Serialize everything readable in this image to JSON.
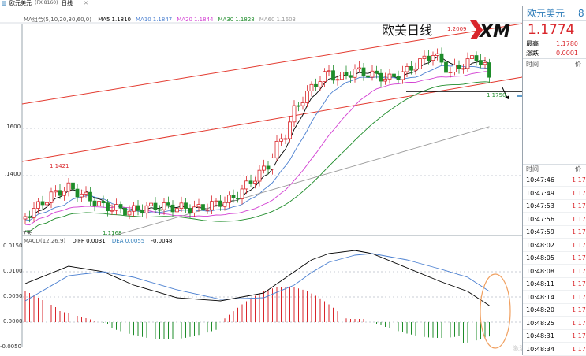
{
  "window": {
    "title_tag": "(FX 8160)",
    "symbol": "欧元美元",
    "period": "日线",
    "close_btn": "✕"
  },
  "ma_indicator": {
    "name": "MA组合(5,10,20,30,60,0)",
    "items": [
      {
        "label": "MA5",
        "value": "1.1810",
        "color": "#000000"
      },
      {
        "label": "MA10",
        "value": "1.1847",
        "color": "#4a7fd0"
      },
      {
        "label": "MA20",
        "value": "1.1844",
        "color": "#d23fd2"
      },
      {
        "label": "MA30",
        "value": "1.1828",
        "color": "#1e8c2a"
      },
      {
        "label": "MA60",
        "value": "1.1603",
        "color": "#9a9a9a"
      }
    ]
  },
  "annotation": {
    "title": "欧美日线",
    "logo": "XM"
  },
  "price_labels": {
    "high": "1.2009",
    "low_left": "1.1421",
    "low_bottom": "1.1168",
    "recent_low": "1.1750",
    "axis_ticks": [
      ".1600",
      ".1400"
    ],
    "bottom_left": "7天"
  },
  "macd": {
    "name": "MACD(12,26,9)",
    "diff_label": "DIFF",
    "diff_value": "0.0031",
    "dea_label": "DEA",
    "dea_value": "0.0055",
    "macd_value": "-0.0048",
    "axis_ticks": [
      "0.0150",
      "0.0100",
      "0.0050",
      "0.0000",
      "-0.0050"
    ],
    "watermark": "激活 Windows"
  },
  "quote_panel": {
    "symbol": "欧元美元",
    "symbol_suffix": "8",
    "price": "1.1774",
    "high_label": "最高",
    "high_value": "1.1780",
    "change_label": "涨跌",
    "change_value": "0.0001",
    "time_header": "时间",
    "price_header": "价",
    "tick_time_header": "时间",
    "tick_price_header": "价",
    "ticks": [
      {
        "time": "10:47:46",
        "price": "1.17"
      },
      {
        "time": "10:47:49",
        "price": "1.17"
      },
      {
        "time": "10:47:53",
        "price": "1.17"
      },
      {
        "time": "10:47:56",
        "price": "1.17"
      },
      {
        "time": "10:47:59",
        "price": "1.17"
      },
      {
        "time": "10:48:02",
        "price": "1.17"
      },
      {
        "time": "10:48:05",
        "price": "1.17"
      },
      {
        "time": "10:48:08",
        "price": "1.17"
      },
      {
        "time": "10:48:11",
        "price": "1.17"
      },
      {
        "time": "10:48:14",
        "price": "1.17"
      },
      {
        "time": "10:48:20",
        "price": "1.17"
      },
      {
        "time": "10:48:25",
        "price": "1.17"
      },
      {
        "time": "10:48:31",
        "price": "1.17"
      },
      {
        "time": "10:48:34",
        "price": "1.17"
      }
    ]
  },
  "colors": {
    "up": "#d9262b",
    "down": "#1e8c2a",
    "accent_blue": "#2a7ab8",
    "channel": "#e33a2f"
  }
}
